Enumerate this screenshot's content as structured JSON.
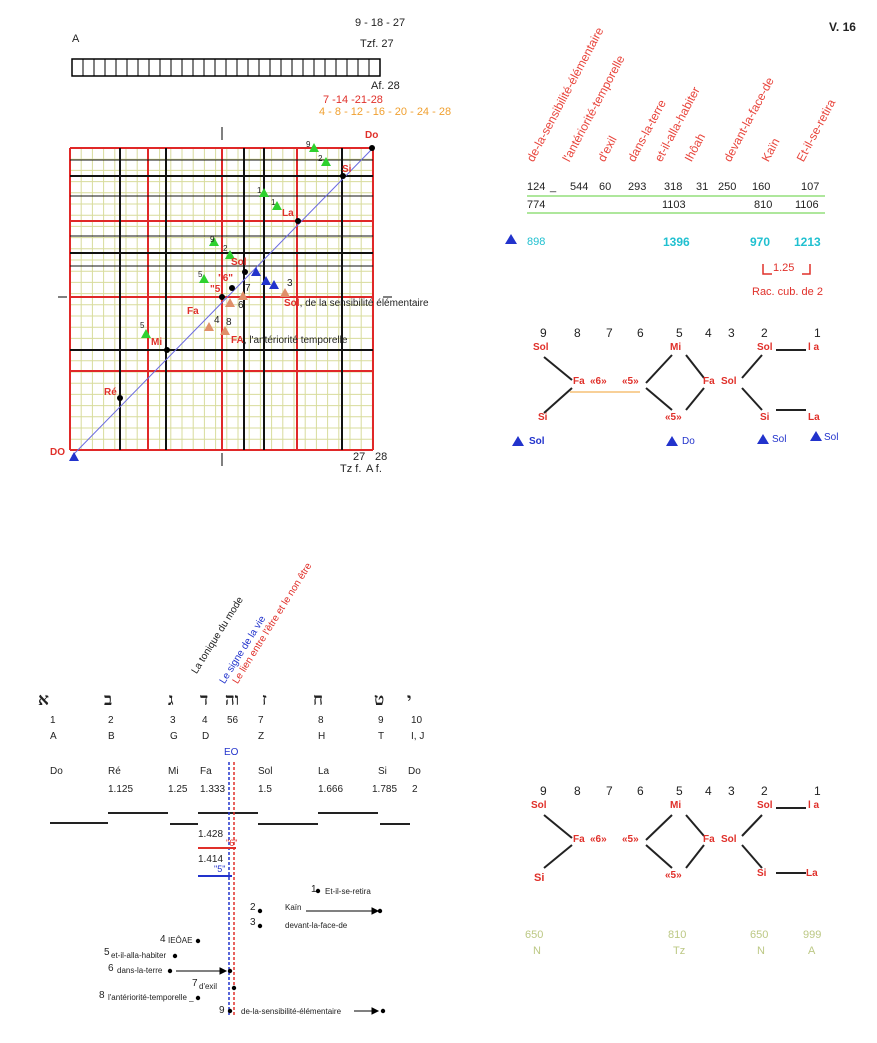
{
  "version": "V. 16",
  "top_left": {
    "letter_a": "A",
    "n9_18_27": "9 - 18 - 27",
    "tzf27": "Tzf. 27",
    "af28": "Af. 28",
    "red_seq": "7 -14 -21-28",
    "orange_seq": "4 - 8 - 12 - 16 - 20 - 24 - 28"
  },
  "grid": {
    "do_top": "Do",
    "si": "Si",
    "la": "La",
    "sol": "Sol",
    "mi": "Mi",
    "re": "Ré",
    "fa": "Fa",
    "do_bottom": "DO",
    "q6": "\"6\"",
    "q5": "\"5'",
    "sol_note": ", de la sensibilité élémentaire",
    "sol_red": "Sol",
    "fa_note": ", l'antériorité temporelle",
    "fa_red": "FA",
    "n9": "9",
    "n2a": "2",
    "n1a": "1",
    "n1b": "1",
    "n9b": "9",
    "n2b": "2",
    "n5a": "5",
    "n7": "7",
    "n3": "3",
    "n6": "6",
    "n4": "4",
    "n8": "8",
    "n5b": "5",
    "axis_27": "27",
    "axis_28": "28",
    "axis_tzf": "Tz f.",
    "axis_af": "A f."
  },
  "words": [
    "de-la-sensibilité-élémentaire",
    "l'antériorité-temporelle",
    "d'exil",
    "dans-la-terre",
    "et-il-alla-habiter",
    "Ihôah",
    "devant-la-face-de",
    "Kaïn",
    "Et-il-se-retira"
  ],
  "numbers": {
    "r1": [
      "124",
      "_",
      "544",
      "60",
      "293",
      "318",
      "31",
      "250",
      "160",
      "107"
    ],
    "r2": [
      "774",
      "1103",
      "810",
      "1106"
    ],
    "r3": [
      "898",
      "1396",
      "970",
      "1213"
    ],
    "ratio": "1.25",
    "rac": "Rac. cub. de 2"
  },
  "diagram1": {
    "nums": [
      "9",
      "8",
      "7",
      "6",
      "5",
      "4",
      "3",
      "2",
      "1"
    ],
    "sol1": "Sol",
    "si": "Si",
    "fa": "Fa",
    "q6": "«6»",
    "q5a": "«5»",
    "mi": "Mi",
    "q5b": "«5»",
    "fasol": "Fa",
    "sol_mid": "Sol",
    "sol2": "Sol",
    "la_top": "l a",
    "si2": "Si",
    "la2": "La",
    "tri_sol": "Sol",
    "tri_do": "Do",
    "tri_sol2": "Sol",
    "tri_sol3": "Sol"
  },
  "hebrew": {
    "labels_rot": [
      "La tonique du mode",
      "Le signe de la vie",
      "Le lien entre l'être et le non être"
    ],
    "letters": [
      "א",
      "ב",
      "ג",
      "ד",
      "וה",
      "ז",
      "ח",
      "ט",
      "י"
    ],
    "nums": [
      "1",
      "2",
      "3",
      "4",
      "56",
      "7",
      "8",
      "9",
      "10"
    ],
    "latin": [
      "A",
      "B",
      "G",
      "D",
      "Z",
      "H",
      "T",
      "I, J"
    ],
    "eo": "EO",
    "notes": [
      "Do",
      "Ré",
      "Mi",
      "Fa",
      "Sol",
      "La",
      "Si",
      "Do"
    ],
    "ratios": [
      "1.125",
      "1.25",
      "1.333",
      "1.5",
      "1.666",
      "1.785",
      "2"
    ],
    "v1428": "1.428",
    "v6": "\"6\"",
    "v1414": "1.414",
    "v5": "\"5\"",
    "items": [
      {
        "n": "1",
        "t": "Et-il-se-retira"
      },
      {
        "n": "2",
        "t": "Kaïn"
      },
      {
        "n": "3",
        "t": "devant-la-face-de"
      },
      {
        "n": "4",
        "t": "IEÔAE"
      },
      {
        "n": "5",
        "t": "et-il-alla-habiter"
      },
      {
        "n": "6",
        "t": "dans-la-terre"
      },
      {
        "n": "7",
        "t": "d'exil"
      },
      {
        "n": "8",
        "t": "l'antériorité-temporelle _"
      },
      {
        "n": "9",
        "t": "de-la-sensibilité-élémentaire"
      }
    ]
  },
  "diagram2": {
    "nums": [
      "9",
      "8",
      "7",
      "6",
      "5",
      "4",
      "3",
      "2",
      "1"
    ],
    "sol1": "Sol",
    "si": "Si",
    "fa": "Fa",
    "q6": "«6»",
    "q5a": "«5»",
    "mi": "Mi",
    "q5b": "«5»",
    "fa2": "Fa",
    "sol_mid": "Sol",
    "sol2": "Sol",
    "la_top": "l a",
    "si2": "Si",
    "la2": "La",
    "bottom_nums": [
      "650",
      "810",
      "650",
      "999"
    ],
    "bottom_letters": [
      "N",
      "Tz",
      "N",
      "A"
    ]
  }
}
